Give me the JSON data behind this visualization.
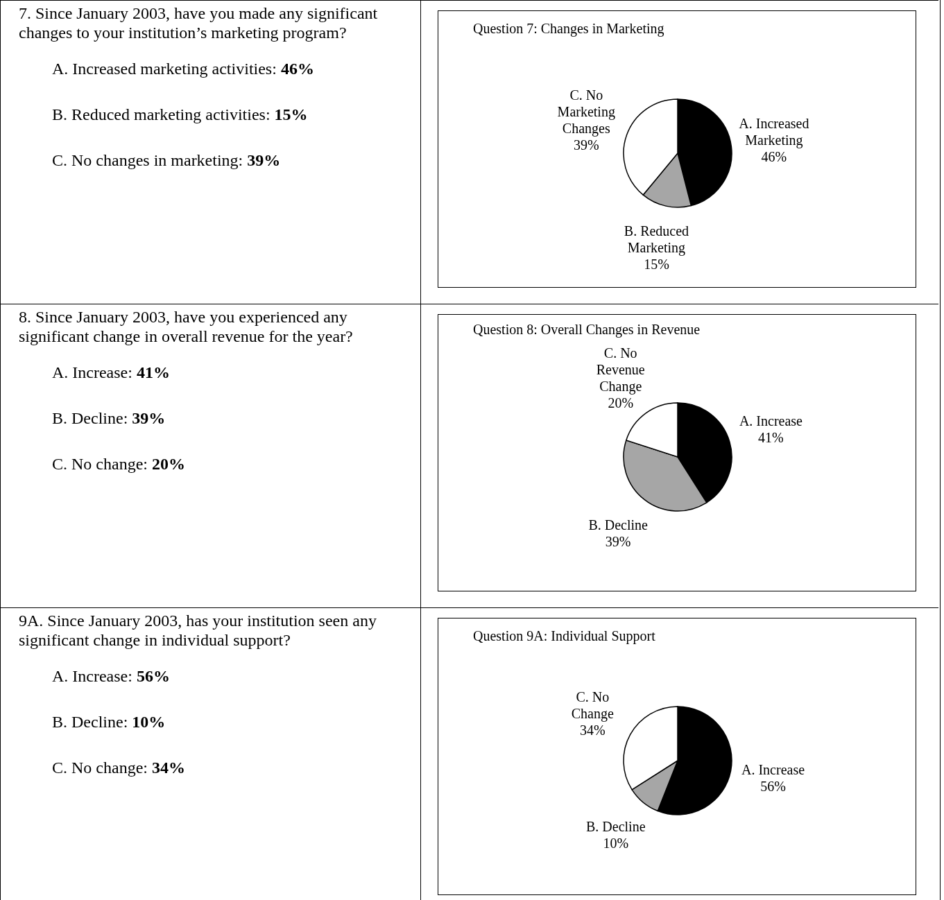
{
  "chart_data": [
    {
      "type": "other",
      "title": "7.  Since January 2003, have you made any significant changes to your institution’s marketing program?",
      "annotations": [
        "A.  Increased marketing activities: 46%",
        "B.  Reduced marketing activities: 15%",
        "C.  No changes in marketing: 39%"
      ]
    },
    {
      "type": "pie",
      "title": "Question 7: Changes in Marketing",
      "categories": [
        "A. Increased\nMarketing",
        "B. Reduced\nMarketing",
        "C. No\nMarketing\nChanges"
      ],
      "values": [
        46,
        15,
        39
      ],
      "value_labels": [
        "46%",
        "15%",
        "39%"
      ],
      "colors": [
        "#000000",
        "#a6a6a6",
        "#ffffff"
      ]
    },
    {
      "type": "other",
      "title": "8.  Since January 2003, have you experienced any significant change in overall revenue for the year?",
      "annotations": [
        "A.  Increase: 41%",
        "B.  Decline: 39%",
        "C.  No change: 20%"
      ]
    },
    {
      "type": "pie",
      "title": "Question 8: Overall Changes in Revenue",
      "categories": [
        "A. Increase",
        "B. Decline",
        "C. No\nRevenue\nChange"
      ],
      "values": [
        41,
        39,
        20
      ],
      "value_labels": [
        "41%",
        "39%",
        "20%"
      ],
      "colors": [
        "#000000",
        "#a6a6a6",
        "#ffffff"
      ]
    },
    {
      "type": "other",
      "title": "9A. Since January 2003, has your institution seen any significant change in individual support?",
      "annotations": [
        "A.  Increase: 56%",
        "B.  Decline: 10%",
        "C.  No change: 34%"
      ]
    },
    {
      "type": "pie",
      "title": "Question 9A: Individual Support",
      "categories": [
        "A. Increase",
        "B. Decline",
        "C. No\nChange"
      ],
      "values": [
        56,
        10,
        34
      ],
      "value_labels": [
        "56%",
        "10%",
        "34%"
      ],
      "colors": [
        "#000000",
        "#a6a6a6",
        "#ffffff"
      ]
    }
  ]
}
